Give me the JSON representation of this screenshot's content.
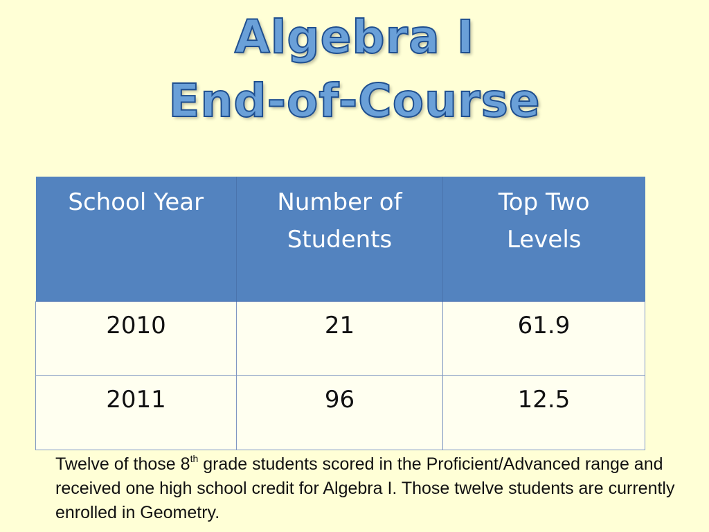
{
  "title": {
    "line1": "Algebra I",
    "line2": "End-of-Course"
  },
  "table": {
    "headers": [
      {
        "line1": "School Year",
        "line2": ""
      },
      {
        "line1": "Number of",
        "line2": "Students"
      },
      {
        "line1": "Top Two",
        "line2": "Levels"
      }
    ],
    "rows": [
      [
        "2010",
        "21",
        "61.9"
      ],
      [
        "2011",
        "96",
        "12.5"
      ]
    ]
  },
  "caption": {
    "part1": "Twelve of  those 8",
    "superscript": "th",
    "part2": " grade students scored in the Proficient/Advanced range and received one high school credit for Algebra I.  Those twelve students are currently enrolled in Geometry."
  },
  "colors": {
    "background": "#ffffd6",
    "header": "#5383bf",
    "title_fill": "#6aa0d8",
    "title_outline": "#1f4f8f"
  }
}
